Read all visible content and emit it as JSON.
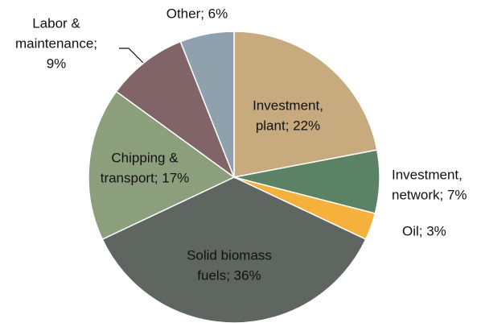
{
  "chart_data": {
    "type": "pie",
    "values": [
      22,
      7,
      3,
      36,
      17,
      9,
      6
    ],
    "colors": [
      "#c8aa7f",
      "#5c8265",
      "#f5b13b",
      "#5f6661",
      "#8c9f7d",
      "#806467",
      "#8fa1ac"
    ],
    "value_labels": [
      [
        "Investment,",
        "plant; 22%"
      ],
      [
        "Investment,",
        "network; 7%"
      ],
      [
        "Oil; 3%"
      ],
      [
        "Solid biomass",
        "fuels; 36%"
      ],
      [
        "Chipping &",
        "transport; 17%"
      ],
      [
        "Labor &",
        "maintenance;",
        "9%"
      ],
      [
        "Other; 6%"
      ]
    ]
  }
}
